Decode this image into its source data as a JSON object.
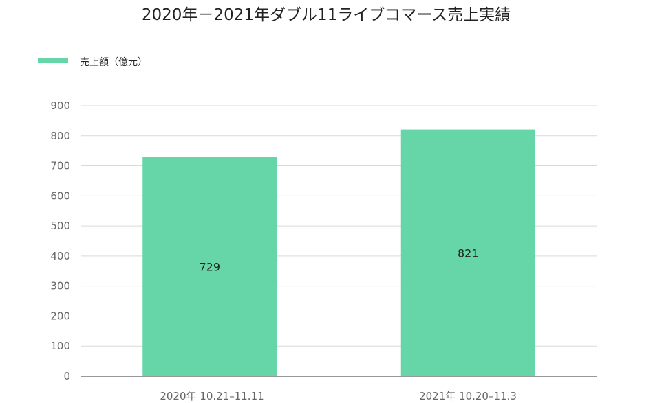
{
  "chart_data": {
    "type": "bar",
    "title": "2020年－2021年ダブル11ライブコマース売上実績",
    "categories": [
      "2020年 10.21–11.11",
      "2021年 10.20–11.3"
    ],
    "series": [
      {
        "name": "売上額（億元）",
        "values": [
          729,
          821
        ]
      }
    ],
    "data_labels": [
      "729",
      "821"
    ],
    "ylim": [
      0,
      900
    ],
    "yticks": [
      0,
      100,
      200,
      300,
      400,
      500,
      600,
      700,
      800,
      900
    ],
    "grid": true,
    "legend_position": "top-left",
    "colors": {
      "bar": "#66d6a8",
      "grid": "#d9d9d9",
      "axis": "#333333"
    }
  }
}
